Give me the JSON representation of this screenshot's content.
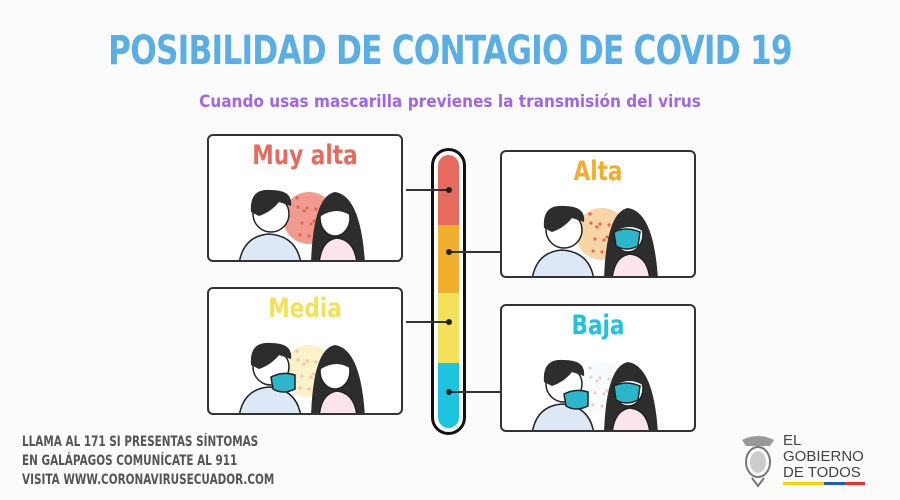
{
  "title": "POSIBILIDAD DE CONTAGIO DE COVID 19",
  "subtitle": "Cuando usas mascarilla previenes la transmisión del virus",
  "levels": [
    {
      "label": "Muy alta",
      "color": "#e76a5f",
      "man_mask": false,
      "woman_mask": false
    },
    {
      "label": "Alta",
      "color": "#f0ae2d",
      "man_mask": false,
      "woman_mask": true
    },
    {
      "label": "Media",
      "color": "#f5e05a",
      "man_mask": true,
      "woman_mask": false
    },
    {
      "label": "Baja",
      "color": "#1ec3dd",
      "man_mask": true,
      "woman_mask": true
    }
  ],
  "footer": {
    "line1": "LLAMA AL 171 SI PRESENTAS SÍNTOMAS",
    "line2": "EN GALÁPAGOS COMUNÍCATE AL 911",
    "line3": "VISITA WWW.CORONAVIRUSECUADOR.COM"
  },
  "logo": {
    "line1": "EL",
    "line2": "GOBIERNO",
    "line3": "DE TODOS",
    "flag_colors": [
      "#f6d300",
      "#1a5fb4",
      "#e4322b"
    ]
  },
  "title_color": "#5aaee6",
  "subtitle_color": "#a065e8"
}
